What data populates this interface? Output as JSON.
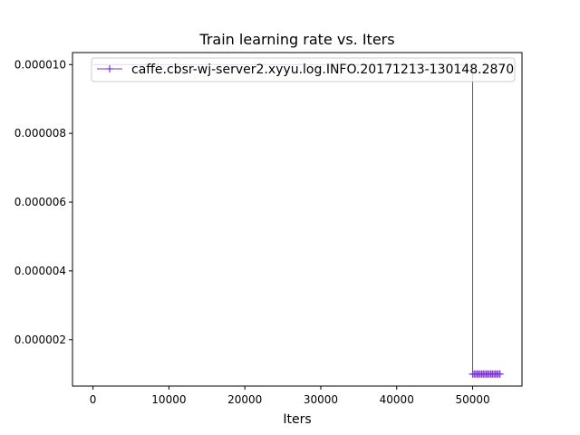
{
  "chart_data": {
    "type": "line",
    "title": "Train learning rate  vs. Iters",
    "xlabel": "Iters",
    "ylabel": "",
    "xlim": [
      -2700,
      56500
    ],
    "ylim": [
      6.5e-07,
      1.035e-05
    ],
    "xticks": [
      0,
      10000,
      20000,
      30000,
      40000,
      50000
    ],
    "yticks": [
      2e-06,
      4e-06,
      6e-06,
      8e-06,
      1e-05
    ],
    "xtick_labels": [
      "0",
      "10000",
      "20000",
      "30000",
      "40000",
      "50000"
    ],
    "ytick_labels": [
      "0.000002",
      "0.000004",
      "0.000006",
      "0.000008",
      "0.000010"
    ],
    "legend_position": "top-right",
    "grid": false,
    "series": [
      {
        "name": "caffe.cbsr-wj-server2.xyyu.log.INFO.20171213-130148.2870",
        "color": "#7b2fd1",
        "marker": "+",
        "x": [
          0,
          50000,
          50000,
          50200,
          50400,
          50600,
          50800,
          51000,
          51200,
          51400,
          51600,
          51800,
          52000,
          52200,
          52400,
          52600,
          52800,
          53000,
          53200,
          53400,
          53600
        ],
        "y": [
          1e-05,
          1e-05,
          1e-06,
          1e-06,
          1e-06,
          1e-06,
          1e-06,
          1e-06,
          1e-06,
          1e-06,
          1e-06,
          1e-06,
          1e-06,
          1e-06,
          1e-06,
          1e-06,
          1e-06,
          1e-06,
          1e-06,
          1e-06,
          1e-06
        ]
      }
    ]
  }
}
